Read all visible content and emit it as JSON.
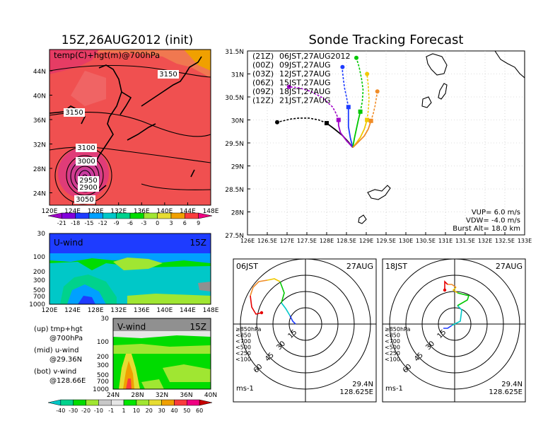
{
  "left_panel": {
    "title": "15Z,26AUG2012 (init)",
    "field_label": "temp(C)+hgt(m)@700hPa",
    "lat_ticks": [
      "44N",
      "40N",
      "36N",
      "32N",
      "28N",
      "24N"
    ],
    "lon_ticks": [
      "120E",
      "124E",
      "128E",
      "132E",
      "136E",
      "140E",
      "144E",
      "148E"
    ],
    "contour_labels": [
      "3150",
      "3150",
      "3100",
      "3000",
      "2950",
      "2900",
      "3050"
    ],
    "colorbar_labels": [
      "-21",
      "-18",
      "-15",
      "-12",
      "-9",
      "-6",
      "-3",
      "0",
      "3",
      "6",
      "9"
    ],
    "colorbar_colors": [
      "#a000c8",
      "#8200dc",
      "#1e3cff",
      "#00a0ff",
      "#00c8c8",
      "#00d28c",
      "#00dc00",
      "#a0e632",
      "#e6dc32",
      "#f0a000",
      "#fa3c3c",
      "#f00082"
    ]
  },
  "u_panel": {
    "label": "U-wind",
    "time": "15Z",
    "y_ticks": [
      "30",
      "100",
      "200",
      "300",
      "500",
      "700",
      "1000"
    ],
    "x_ticks": [
      "120E",
      "124E",
      "128E",
      "132E",
      "136E",
      "140E",
      "144E",
      "148E"
    ]
  },
  "v_panel": {
    "label": "V-wind",
    "time": "15Z",
    "y_ticks": [
      "30",
      "100",
      "200",
      "300",
      "500",
      "700",
      "1000"
    ],
    "x_ticks": [
      "24N",
      "28N",
      "32N",
      "36N",
      "40N"
    ]
  },
  "legend_notes": [
    {
      "head": "(up) tmp+hgt",
      "sub": "@700hPa"
    },
    {
      "head": "(mid) u-wind",
      "sub": "@29.36N"
    },
    {
      "head": "(bot) v-wind",
      "sub": "@128.66E"
    }
  ],
  "wind_colorbar": {
    "labels": [
      "-40",
      "-30",
      "-20",
      "-10",
      "-1",
      "1",
      "10",
      "20",
      "30",
      "40",
      "50",
      "60"
    ],
    "colors": [
      "#00c8c8",
      "#00d28c",
      "#00dc00",
      "#a0e632",
      "#c8c8c8",
      "#e6e6e6",
      "#00e600",
      "#a0e632",
      "#e6dc32",
      "#f0a000",
      "#fa3c3c",
      "#f00082",
      "#c80000"
    ]
  },
  "track_panel": {
    "title": "Sonde Tracking Forecast",
    "lat_ticks": [
      "31.5N",
      "31N",
      "30.5N",
      "30N",
      "29.5N",
      "29N",
      "28.5N",
      "28N",
      "27.5N"
    ],
    "lon_ticks": [
      "126E",
      "126.5E",
      "127E",
      "127.5E",
      "128E",
      "128.5E",
      "129E",
      "129.5E",
      "130E",
      "130.5E",
      "131E",
      "131.5E",
      "132E",
      "132.5E",
      "133E"
    ],
    "launches": [
      {
        "code": "(21Z)",
        "label": "06JST,27AUG2012",
        "color": "#000000"
      },
      {
        "code": "(00Z)",
        "label": "09JST,27AUG",
        "color": "#a000c8"
      },
      {
        "code": "(03Z)",
        "label": "12JST,27AUG",
        "color": "#1e3cff"
      },
      {
        "code": "(06Z)",
        "label": "15JST,27AUG",
        "color": "#00c800"
      },
      {
        "code": "(09Z)",
        "label": "18JST,27AUG",
        "color": "#f0c800"
      },
      {
        "code": "(12Z)",
        "label": "21JST,27AUG",
        "color": "#f08c28"
      }
    ],
    "params": [
      "VUP= 6.0 m/s",
      "VDW= -4.0 m/s",
      "Burst Alt= 18.0 km"
    ]
  },
  "chart_data": {
    "type": "line",
    "title": "Sonde Tracking Forecast",
    "xlim": [
      126,
      133
    ],
    "ylim": [
      27.5,
      31.5
    ],
    "launch_point": {
      "lon": 128.66,
      "lat": 29.4
    },
    "series": [
      {
        "name": "06JST,27AUG2012",
        "color": "#000000",
        "x": [
          128.66,
          128.55,
          128.4,
          128.2,
          128.0,
          127.8,
          127.55,
          127.3,
          127.1,
          126.9,
          126.75
        ],
        "y": [
          29.4,
          29.52,
          29.66,
          29.8,
          29.93,
          30.0,
          30.04,
          30.04,
          30.02,
          29.98,
          29.95
        ]
      },
      {
        "name": "09JST,27AUG",
        "color": "#a000c8",
        "x": [
          128.66,
          128.5,
          128.35,
          128.3,
          128.3,
          128.25,
          128.15,
          127.9,
          127.6,
          127.3,
          127.05
        ],
        "y": [
          29.4,
          29.55,
          29.72,
          29.88,
          30.0,
          30.12,
          30.28,
          30.48,
          30.62,
          30.7,
          30.72
        ]
      },
      {
        "name": "12JST,27AUG",
        "color": "#1e3cff",
        "x": [
          128.66,
          128.6,
          128.55,
          128.55,
          128.55,
          128.5,
          128.45,
          128.42,
          128.4,
          128.4
        ],
        "y": [
          29.4,
          29.6,
          29.85,
          30.05,
          30.28,
          30.5,
          30.7,
          30.9,
          31.05,
          31.15
        ]
      },
      {
        "name": "15JST,27AUG",
        "color": "#00c800",
        "x": [
          128.66,
          128.7,
          128.75,
          128.8,
          128.85,
          128.9,
          128.92,
          128.88,
          128.82,
          128.75
        ],
        "y": [
          29.4,
          29.6,
          29.8,
          30.0,
          30.18,
          30.4,
          30.65,
          30.9,
          31.15,
          31.35
        ]
      },
      {
        "name": "18JST,27AUG",
        "color": "#f0c800",
        "x": [
          128.66,
          128.75,
          128.85,
          128.95,
          129.02,
          129.05,
          129.07,
          129.05,
          129.02
        ],
        "y": [
          29.4,
          29.5,
          29.62,
          29.8,
          30.0,
          30.2,
          30.45,
          30.75,
          31.0
        ]
      },
      {
        "name": "21JST,27AUG",
        "color": "#f08c28",
        "x": [
          128.66,
          128.8,
          128.95,
          129.05,
          129.12,
          129.18,
          129.22,
          129.25,
          129.28
        ],
        "y": [
          29.4,
          29.52,
          29.65,
          29.8,
          29.98,
          30.15,
          30.3,
          30.45,
          30.62
        ]
      }
    ]
  },
  "hodo_left": {
    "title": "06JST",
    "date": "27AUG",
    "ring_labels": [
      "15",
      "30",
      "45",
      "60"
    ],
    "press_legend": [
      "≥850hPa",
      "<850",
      "<700",
      "<500",
      "<250",
      "<100"
    ],
    "press_colors": [
      "#e60000",
      "#f08c28",
      "#f0c800",
      "#00c800",
      "#00c8c8",
      "#1e3cff"
    ],
    "unit": "ms-1",
    "lat": "29.4N",
    "lon": "128.625E"
  },
  "hodo_right": {
    "title": "18JST",
    "date": "27AUG",
    "ring_labels": [
      "15",
      "30",
      "45",
      "60"
    ],
    "press_legend": [
      "≥850hPa",
      "<850",
      "<700",
      "<500",
      "<250",
      "<100"
    ],
    "press_colors": [
      "#e60000",
      "#f08c28",
      "#f0c800",
      "#00c800",
      "#00c8c8",
      "#1e3cff"
    ],
    "unit": "ms-1",
    "lat": "29.4N",
    "lon": "128.625E"
  }
}
